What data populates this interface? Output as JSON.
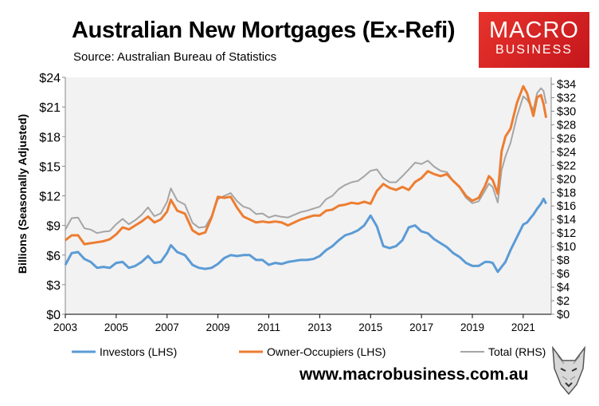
{
  "title": "Australian New Mortgages (Ex-Refi)",
  "source": "Source: Australian Bureau of Statistics",
  "logo": {
    "line1": "MACRO",
    "line2": "BUSINESS",
    "color": "#d9232a"
  },
  "url": "www.macrobusiness.com.au",
  "chart_data": {
    "type": "line",
    "ylabel": "Billions (Seasonally Adjusted)",
    "ylim": [
      0,
      24
    ],
    "y_ticks": [
      "$0",
      "$3",
      "$6",
      "$9",
      "$12",
      "$15",
      "$18",
      "$21",
      "$24"
    ],
    "y2lim": [
      0,
      35
    ],
    "y2_ticks": [
      "$0",
      "$2",
      "$4",
      "$6",
      "$8",
      "$10",
      "$12",
      "$14",
      "$16",
      "$18",
      "$20",
      "$22",
      "$24",
      "$26",
      "$28",
      "$30",
      "$32",
      "$34"
    ],
    "xlim": [
      2003,
      2022.1
    ],
    "x_ticks": [
      "2003",
      "2005",
      "2007",
      "2009",
      "2011",
      "2013",
      "2015",
      "2017",
      "2019",
      "2021"
    ],
    "grid": false,
    "legend": "bottom",
    "x": [
      2003.0,
      2003.25,
      2003.5,
      2003.75,
      2004.0,
      2004.25,
      2004.5,
      2004.75,
      2005.0,
      2005.25,
      2005.5,
      2005.75,
      2006.0,
      2006.25,
      2006.5,
      2006.75,
      2007.0,
      2007.15,
      2007.4,
      2007.7,
      2008.0,
      2008.25,
      2008.5,
      2008.75,
      2009.0,
      2009.25,
      2009.5,
      2009.75,
      2010.0,
      2010.25,
      2010.5,
      2010.75,
      2011.0,
      2011.25,
      2011.5,
      2011.75,
      2012.0,
      2012.25,
      2012.5,
      2012.75,
      2013.0,
      2013.25,
      2013.5,
      2013.75,
      2014.0,
      2014.25,
      2014.5,
      2014.75,
      2015.0,
      2015.25,
      2015.5,
      2015.75,
      2016.0,
      2016.25,
      2016.5,
      2016.75,
      2017.0,
      2017.25,
      2017.5,
      2017.75,
      2018.0,
      2018.25,
      2018.5,
      2018.75,
      2019.0,
      2019.25,
      2019.5,
      2019.65,
      2019.8,
      2020.0,
      2020.15,
      2020.3,
      2020.5,
      2020.75,
      2021.0,
      2021.15,
      2021.3,
      2021.4,
      2021.55,
      2021.7,
      2021.8,
      2021.9
    ],
    "series": [
      {
        "name": "Investors (LHS)",
        "axis": "left",
        "color": "#5b9bd5",
        "values": [
          5.0,
          6.2,
          6.3,
          5.6,
          5.3,
          4.7,
          4.8,
          4.7,
          5.2,
          5.3,
          4.7,
          4.9,
          5.3,
          5.9,
          5.2,
          5.3,
          6.2,
          7.0,
          6.3,
          6.0,
          5.0,
          4.7,
          4.6,
          4.7,
          5.1,
          5.7,
          6.0,
          5.9,
          6.0,
          6.0,
          5.5,
          5.5,
          5.0,
          5.2,
          5.1,
          5.3,
          5.4,
          5.5,
          5.5,
          5.6,
          5.9,
          6.5,
          6.9,
          7.5,
          8.0,
          8.2,
          8.5,
          9.0,
          10.0,
          8.9,
          6.9,
          6.7,
          6.9,
          7.5,
          8.8,
          9.0,
          8.4,
          8.2,
          7.6,
          7.2,
          6.8,
          6.2,
          5.8,
          5.2,
          4.9,
          4.9,
          5.3,
          5.3,
          5.2,
          4.3,
          4.8,
          5.3,
          6.5,
          7.8,
          9.1,
          9.3,
          9.8,
          10.1,
          10.7,
          11.2,
          11.7,
          11.2
        ]
      },
      {
        "name": "Owner-Occupiers (LHS)",
        "axis": "left",
        "color": "#ed7d31",
        "values": [
          7.5,
          8.0,
          8.0,
          7.1,
          7.2,
          7.3,
          7.4,
          7.6,
          8.1,
          8.8,
          8.6,
          9.0,
          9.4,
          9.9,
          9.3,
          9.6,
          10.4,
          11.6,
          10.5,
          10.2,
          8.5,
          8.1,
          8.3,
          9.8,
          11.9,
          11.8,
          11.9,
          10.8,
          9.9,
          9.6,
          9.3,
          9.4,
          9.3,
          9.4,
          9.3,
          9.0,
          9.3,
          9.6,
          9.8,
          10.0,
          10.0,
          10.5,
          10.6,
          11.0,
          11.1,
          11.3,
          11.2,
          11.4,
          11.2,
          12.5,
          13.2,
          12.8,
          12.6,
          12.9,
          12.6,
          13.4,
          13.8,
          14.5,
          14.2,
          14.0,
          14.2,
          13.5,
          12.9,
          12.0,
          11.5,
          11.8,
          13.0,
          14.0,
          13.6,
          12.2,
          16.5,
          18.0,
          18.8,
          21.4,
          23.1,
          22.4,
          21.0,
          20.1,
          22.0,
          22.2,
          21.3,
          19.9
        ]
      },
      {
        "name": "Total (RHS)",
        "axis": "right",
        "color": "#a5a5a5",
        "values": [
          12.5,
          14.2,
          14.3,
          12.7,
          12.5,
          12.0,
          12.2,
          12.3,
          13.3,
          14.1,
          13.3,
          13.9,
          14.7,
          15.8,
          14.5,
          14.9,
          16.6,
          18.6,
          16.8,
          16.2,
          13.5,
          12.8,
          12.9,
          14.5,
          17.0,
          17.5,
          17.9,
          16.7,
          15.9,
          15.6,
          14.8,
          14.9,
          14.3,
          14.6,
          14.4,
          14.3,
          14.7,
          15.1,
          15.3,
          15.6,
          15.9,
          17.0,
          17.5,
          18.5,
          19.1,
          19.5,
          19.7,
          20.4,
          21.2,
          21.4,
          20.1,
          19.5,
          19.5,
          20.4,
          21.4,
          22.4,
          22.2,
          22.7,
          21.8,
          21.2,
          21.0,
          19.7,
          18.7,
          17.2,
          16.4,
          16.7,
          18.3,
          19.3,
          18.8,
          16.5,
          21.3,
          23.3,
          25.3,
          29.2,
          32.2,
          31.7,
          30.8,
          30.2,
          32.7,
          33.4,
          33.0,
          31.1
        ]
      }
    ]
  }
}
